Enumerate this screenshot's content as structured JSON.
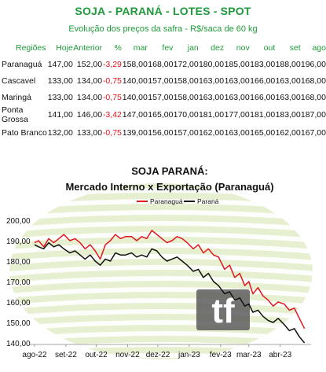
{
  "header": {
    "title": "SOJA - PARANÁ - LOTES - SPOT",
    "subtitle": "Evolução dos preços da safra - R$/saca de 60 kg"
  },
  "table": {
    "columns": [
      "Regiões",
      "Hoje",
      "Anterior",
      "%",
      "mar",
      "fev",
      "jan",
      "dez",
      "nov",
      "out",
      "set",
      "ago"
    ],
    "rows": [
      {
        "cells": [
          "Paranaguá",
          "147,00",
          "152,00",
          "-3,29",
          "158,00",
          "168,00",
          "172,00",
          "180,00",
          "185,00",
          "183,00",
          "188,00",
          "196,00"
        ]
      },
      {
        "cells": [
          "Cascavel",
          "133,00",
          "134,00",
          "-0,75",
          "140,00",
          "157,00",
          "158,00",
          "163,00",
          "163,00",
          "166,00",
          "163,00",
          "168,00"
        ]
      },
      {
        "cells": [
          "Maringá",
          "133,00",
          "134,00",
          "-0,75",
          "140,00",
          "157,00",
          "158,00",
          "163,00",
          "163,00",
          "166,00",
          "163,00",
          "168,00"
        ]
      },
      {
        "cells": [
          "Ponta Grossa",
          "141,00",
          "146,00",
          "-3,42",
          "147,00",
          "165,00",
          "170,00",
          "181,00",
          "177,00",
          "181,00",
          "183,00",
          "187,00"
        ]
      },
      {
        "cells": [
          "Pato Branco",
          "132,00",
          "133,00",
          "-0,75",
          "139,00",
          "156,00",
          "157,00",
          "162,00",
          "163,00",
          "165,00",
          "162,00",
          "167,00"
        ]
      }
    ]
  },
  "logo": "tf",
  "chart_data": {
    "type": "line",
    "title": "SOJA PARANÁ:",
    "subtitle": "Mercado Interno x Exportação (Paranaguá)",
    "xlabel": "",
    "ylabel": "",
    "ylim": [
      140,
      200
    ],
    "yticks": [
      "140,00",
      "150,00",
      "160,00",
      "170,00",
      "180,00",
      "190,00",
      "200,00"
    ],
    "xlim": [
      "2022-08-01",
      "2023-04-30"
    ],
    "xtick_labels": [
      "ago-22",
      "set-22",
      "out-22",
      "nov-22",
      "dez-22",
      "jan-23",
      "fev-23",
      "mar-23",
      "abr-23"
    ],
    "xtick_dates": [
      "2022-08-01",
      "2022-09-01",
      "2022-10-01",
      "2022-11-01",
      "2022-12-01",
      "2023-01-01",
      "2023-02-01",
      "2023-03-01",
      "2023-04-01"
    ],
    "grid": false,
    "legend_position": "top",
    "series": [
      {
        "name": "Paranaguá",
        "color": "#e0161e",
        "x": [
          "2022-08-01",
          "2022-08-05",
          "2022-08-10",
          "2022-08-15",
          "2022-08-20",
          "2022-08-25",
          "2022-08-30",
          "2022-09-05",
          "2022-09-10",
          "2022-09-15",
          "2022-09-20",
          "2022-09-25",
          "2022-09-30",
          "2022-10-05",
          "2022-10-10",
          "2022-10-15",
          "2022-10-20",
          "2022-10-25",
          "2022-10-30",
          "2022-11-05",
          "2022-11-10",
          "2022-11-15",
          "2022-11-20",
          "2022-11-25",
          "2022-11-30",
          "2022-12-05",
          "2022-12-10",
          "2022-12-15",
          "2022-12-20",
          "2022-12-25",
          "2022-12-30",
          "2023-01-05",
          "2023-01-10",
          "2023-01-15",
          "2023-01-20",
          "2023-01-25",
          "2023-01-30",
          "2023-02-05",
          "2023-02-10",
          "2023-02-15",
          "2023-02-20",
          "2023-02-25",
          "2023-03-01",
          "2023-03-05",
          "2023-03-10",
          "2023-03-15",
          "2023-03-20",
          "2023-03-25",
          "2023-03-30",
          "2023-04-05",
          "2023-04-10",
          "2023-04-15",
          "2023-04-20",
          "2023-04-25"
        ],
        "y": [
          189,
          190,
          187,
          191,
          189,
          191,
          193,
          190,
          191,
          189,
          186,
          188,
          185,
          181,
          188,
          190,
          193,
          191,
          192,
          192,
          190,
          192,
          191,
          195,
          193,
          191,
          189,
          190,
          192,
          191,
          189,
          186,
          188,
          184,
          186,
          183,
          182,
          176,
          178,
          172,
          174,
          168,
          170,
          164,
          167,
          163,
          161,
          158,
          160,
          159,
          156,
          157,
          152,
          147
        ]
      },
      {
        "name": "Paraná",
        "color": "#111111",
        "x": [
          "2022-08-01",
          "2022-08-05",
          "2022-08-10",
          "2022-08-15",
          "2022-08-20",
          "2022-08-25",
          "2022-08-30",
          "2022-09-05",
          "2022-09-10",
          "2022-09-15",
          "2022-09-20",
          "2022-09-25",
          "2022-09-30",
          "2022-10-05",
          "2022-10-10",
          "2022-10-15",
          "2022-10-20",
          "2022-10-25",
          "2022-10-30",
          "2022-11-05",
          "2022-11-10",
          "2022-11-15",
          "2022-11-20",
          "2022-11-25",
          "2022-11-30",
          "2022-12-05",
          "2022-12-10",
          "2022-12-15",
          "2022-12-20",
          "2022-12-25",
          "2022-12-30",
          "2023-01-05",
          "2023-01-10",
          "2023-01-15",
          "2023-01-20",
          "2023-01-25",
          "2023-01-30",
          "2023-02-05",
          "2023-02-10",
          "2023-02-15",
          "2023-02-20",
          "2023-02-25",
          "2023-03-01",
          "2023-03-05",
          "2023-03-10",
          "2023-03-15",
          "2023-03-20",
          "2023-03-25",
          "2023-03-30",
          "2023-04-05",
          "2023-04-10",
          "2023-04-15",
          "2023-04-20",
          "2023-04-25"
        ],
        "y": [
          188,
          187,
          186,
          189,
          187,
          188,
          186,
          184,
          185,
          183,
          181,
          183,
          180,
          178,
          181,
          180,
          184,
          183,
          183,
          184,
          182,
          183,
          182,
          186,
          185,
          182,
          180,
          181,
          182,
          180,
          178,
          175,
          176,
          172,
          174,
          170,
          168,
          164,
          165,
          161,
          162,
          158,
          159,
          155,
          156,
          153,
          151,
          150,
          152,
          149,
          146,
          147,
          143,
          140
        ]
      }
    ]
  }
}
